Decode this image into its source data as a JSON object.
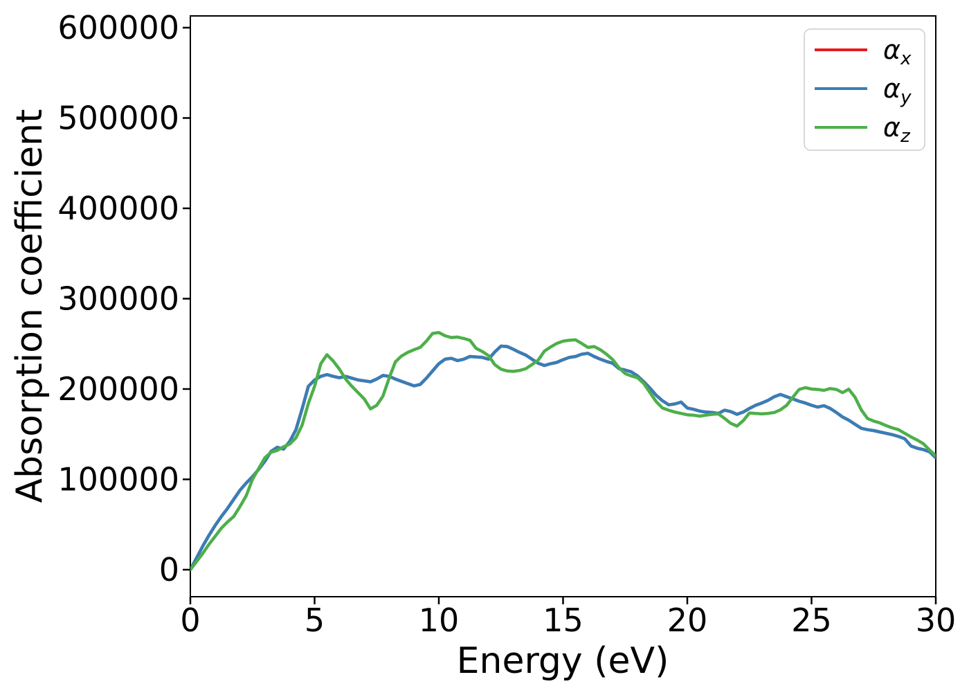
{
  "figure": {
    "background": "#ffffff",
    "spine_color": "#000000"
  },
  "chart_data": {
    "type": "line",
    "title": "",
    "xlabel": "Energy (eV)",
    "ylabel": "Absorption coefficient",
    "xlim": [
      0,
      30
    ],
    "ylim": [
      -29900,
      613000
    ],
    "x_ticks": [
      0,
      5,
      10,
      15,
      20,
      25,
      30
    ],
    "y_ticks": [
      0,
      100000,
      200000,
      300000,
      400000,
      500000,
      600000
    ],
    "grid": false,
    "legend": {
      "position": "upper-right",
      "border_color": "#cccccc",
      "background": "#ffffff"
    },
    "x": [
      0,
      0.25,
      0.5,
      0.75,
      1,
      1.25,
      1.5,
      1.75,
      2,
      2.25,
      2.5,
      2.75,
      3,
      3.25,
      3.5,
      3.75,
      4,
      4.25,
      4.5,
      4.75,
      5,
      5.25,
      5.5,
      5.75,
      6,
      6.25,
      6.5,
      6.75,
      7,
      7.25,
      7.5,
      7.75,
      8,
      8.25,
      8.5,
      8.75,
      9,
      9.25,
      9.5,
      9.75,
      10,
      10.25,
      10.5,
      10.75,
      11,
      11.25,
      11.5,
      11.75,
      12,
      12.25,
      12.5,
      12.75,
      13,
      13.25,
      13.5,
      13.75,
      14,
      14.25,
      14.5,
      14.75,
      15,
      15.25,
      15.5,
      15.75,
      16,
      16.25,
      16.5,
      16.75,
      17,
      17.25,
      17.5,
      17.75,
      18,
      18.25,
      18.5,
      18.75,
      19,
      19.25,
      19.5,
      19.75,
      20,
      20.25,
      20.5,
      20.75,
      21,
      21.25,
      21.5,
      21.75,
      22,
      22.25,
      22.5,
      22.75,
      23,
      23.25,
      23.5,
      23.75,
      24,
      24.25,
      24.5,
      24.75,
      25,
      25.25,
      25.5,
      25.75,
      26,
      26.25,
      26.5,
      26.75,
      27,
      27.25,
      27.5,
      27.75,
      28,
      28.25,
      28.5,
      28.75,
      29,
      29.25,
      29.5,
      29.75,
      30
    ],
    "series": [
      {
        "name": "alpha_x",
        "label": {
          "base": "α",
          "sub": "x"
        },
        "color": "#e41a1c",
        "values": [
          0,
          13000,
          26000,
          38000,
          49000,
          59000,
          68000,
          78000,
          88000,
          96000,
          103000,
          111000,
          120000,
          131000,
          135500,
          133500,
          142000,
          155000,
          178000,
          203000,
          210000,
          214000,
          216000,
          214000,
          212500,
          214000,
          212000,
          210000,
          209000,
          208000,
          211000,
          215000,
          214000,
          211000,
          208500,
          206000,
          203500,
          205000,
          212000,
          220000,
          228000,
          233000,
          234000,
          231500,
          233000,
          236000,
          235500,
          235000,
          233000,
          241000,
          247500,
          247000,
          244000,
          240500,
          237500,
          233000,
          228500,
          226000,
          228000,
          229500,
          232500,
          235000,
          236000,
          238500,
          239500,
          236000,
          233000,
          230500,
          228500,
          222500,
          221000,
          219000,
          214500,
          208000,
          201000,
          193000,
          187000,
          182500,
          183500,
          185500,
          179000,
          177500,
          175500,
          174500,
          174000,
          173000,
          176500,
          175000,
          172000,
          174500,
          178500,
          182000,
          184500,
          187500,
          191500,
          194000,
          191500,
          189000,
          186500,
          184500,
          182000,
          180000,
          181500,
          178500,
          174000,
          169000,
          165500,
          161000,
          156500,
          155000,
          154000,
          152500,
          151000,
          149500,
          147500,
          145000,
          137000,
          134500,
          133000,
          130500,
          124000
        ]
      },
      {
        "name": "alpha_y",
        "label": {
          "base": "α",
          "sub": "y"
        },
        "color": "#377eb8",
        "values": [
          0,
          13000,
          26000,
          38000,
          49000,
          59000,
          68000,
          78000,
          88000,
          96000,
          103000,
          111000,
          120000,
          131000,
          135500,
          133500,
          142000,
          155000,
          178000,
          203000,
          210000,
          214000,
          216000,
          214000,
          212500,
          214000,
          212000,
          210000,
          209000,
          208000,
          211000,
          215000,
          214000,
          211000,
          208500,
          206000,
          203500,
          205000,
          212000,
          220000,
          228000,
          233000,
          234000,
          231500,
          233000,
          236000,
          235500,
          235000,
          233000,
          241000,
          247500,
          247000,
          244000,
          240500,
          237500,
          233000,
          228500,
          226000,
          228000,
          229500,
          232500,
          235000,
          236000,
          238500,
          239500,
          236000,
          233000,
          230500,
          228500,
          222500,
          221000,
          219000,
          214500,
          208000,
          201000,
          193000,
          187000,
          182500,
          183500,
          185500,
          179000,
          177500,
          175500,
          174500,
          174000,
          173000,
          176500,
          175000,
          172000,
          174500,
          178500,
          182000,
          184500,
          187500,
          191500,
          194000,
          191500,
          189000,
          186500,
          184500,
          182000,
          180000,
          181500,
          178500,
          174000,
          169000,
          165500,
          161000,
          156500,
          155000,
          154000,
          152500,
          151000,
          149500,
          147500,
          145000,
          137000,
          134500,
          133000,
          130500,
          124000
        ]
      },
      {
        "name": "alpha_z",
        "label": {
          "base": "α",
          "sub": "z"
        },
        "color": "#4daf4a",
        "values": [
          0,
          9000,
          18000,
          28000,
          37000,
          46000,
          53000,
          59000,
          70000,
          82000,
          100000,
          112000,
          124000,
          130000,
          132000,
          136000,
          139000,
          146000,
          160000,
          184000,
          203000,
          228000,
          238000,
          231000,
          222000,
          211000,
          203000,
          196000,
          189000,
          178000,
          182000,
          192000,
          212000,
          230000,
          236500,
          240500,
          243500,
          246000,
          253000,
          261500,
          262500,
          259000,
          257000,
          257500,
          256000,
          254000,
          245000,
          241500,
          237000,
          227000,
          222000,
          220000,
          219500,
          220500,
          222500,
          227000,
          232000,
          242000,
          246500,
          250500,
          253000,
          254000,
          254500,
          250500,
          246000,
          247000,
          243500,
          238500,
          232500,
          223500,
          217000,
          214500,
          212500,
          206000,
          196000,
          186000,
          179000,
          176500,
          174500,
          173000,
          171500,
          171000,
          170000,
          171000,
          172000,
          172500,
          167500,
          162000,
          159000,
          165000,
          173500,
          173000,
          172500,
          173000,
          174000,
          177000,
          182000,
          191000,
          199500,
          201500,
          200000,
          199500,
          198500,
          200500,
          199500,
          196000,
          199800,
          191000,
          177000,
          167500,
          164500,
          162500,
          159500,
          157000,
          155000,
          151000,
          147000,
          143500,
          139500,
          132500,
          126000
        ]
      }
    ]
  }
}
